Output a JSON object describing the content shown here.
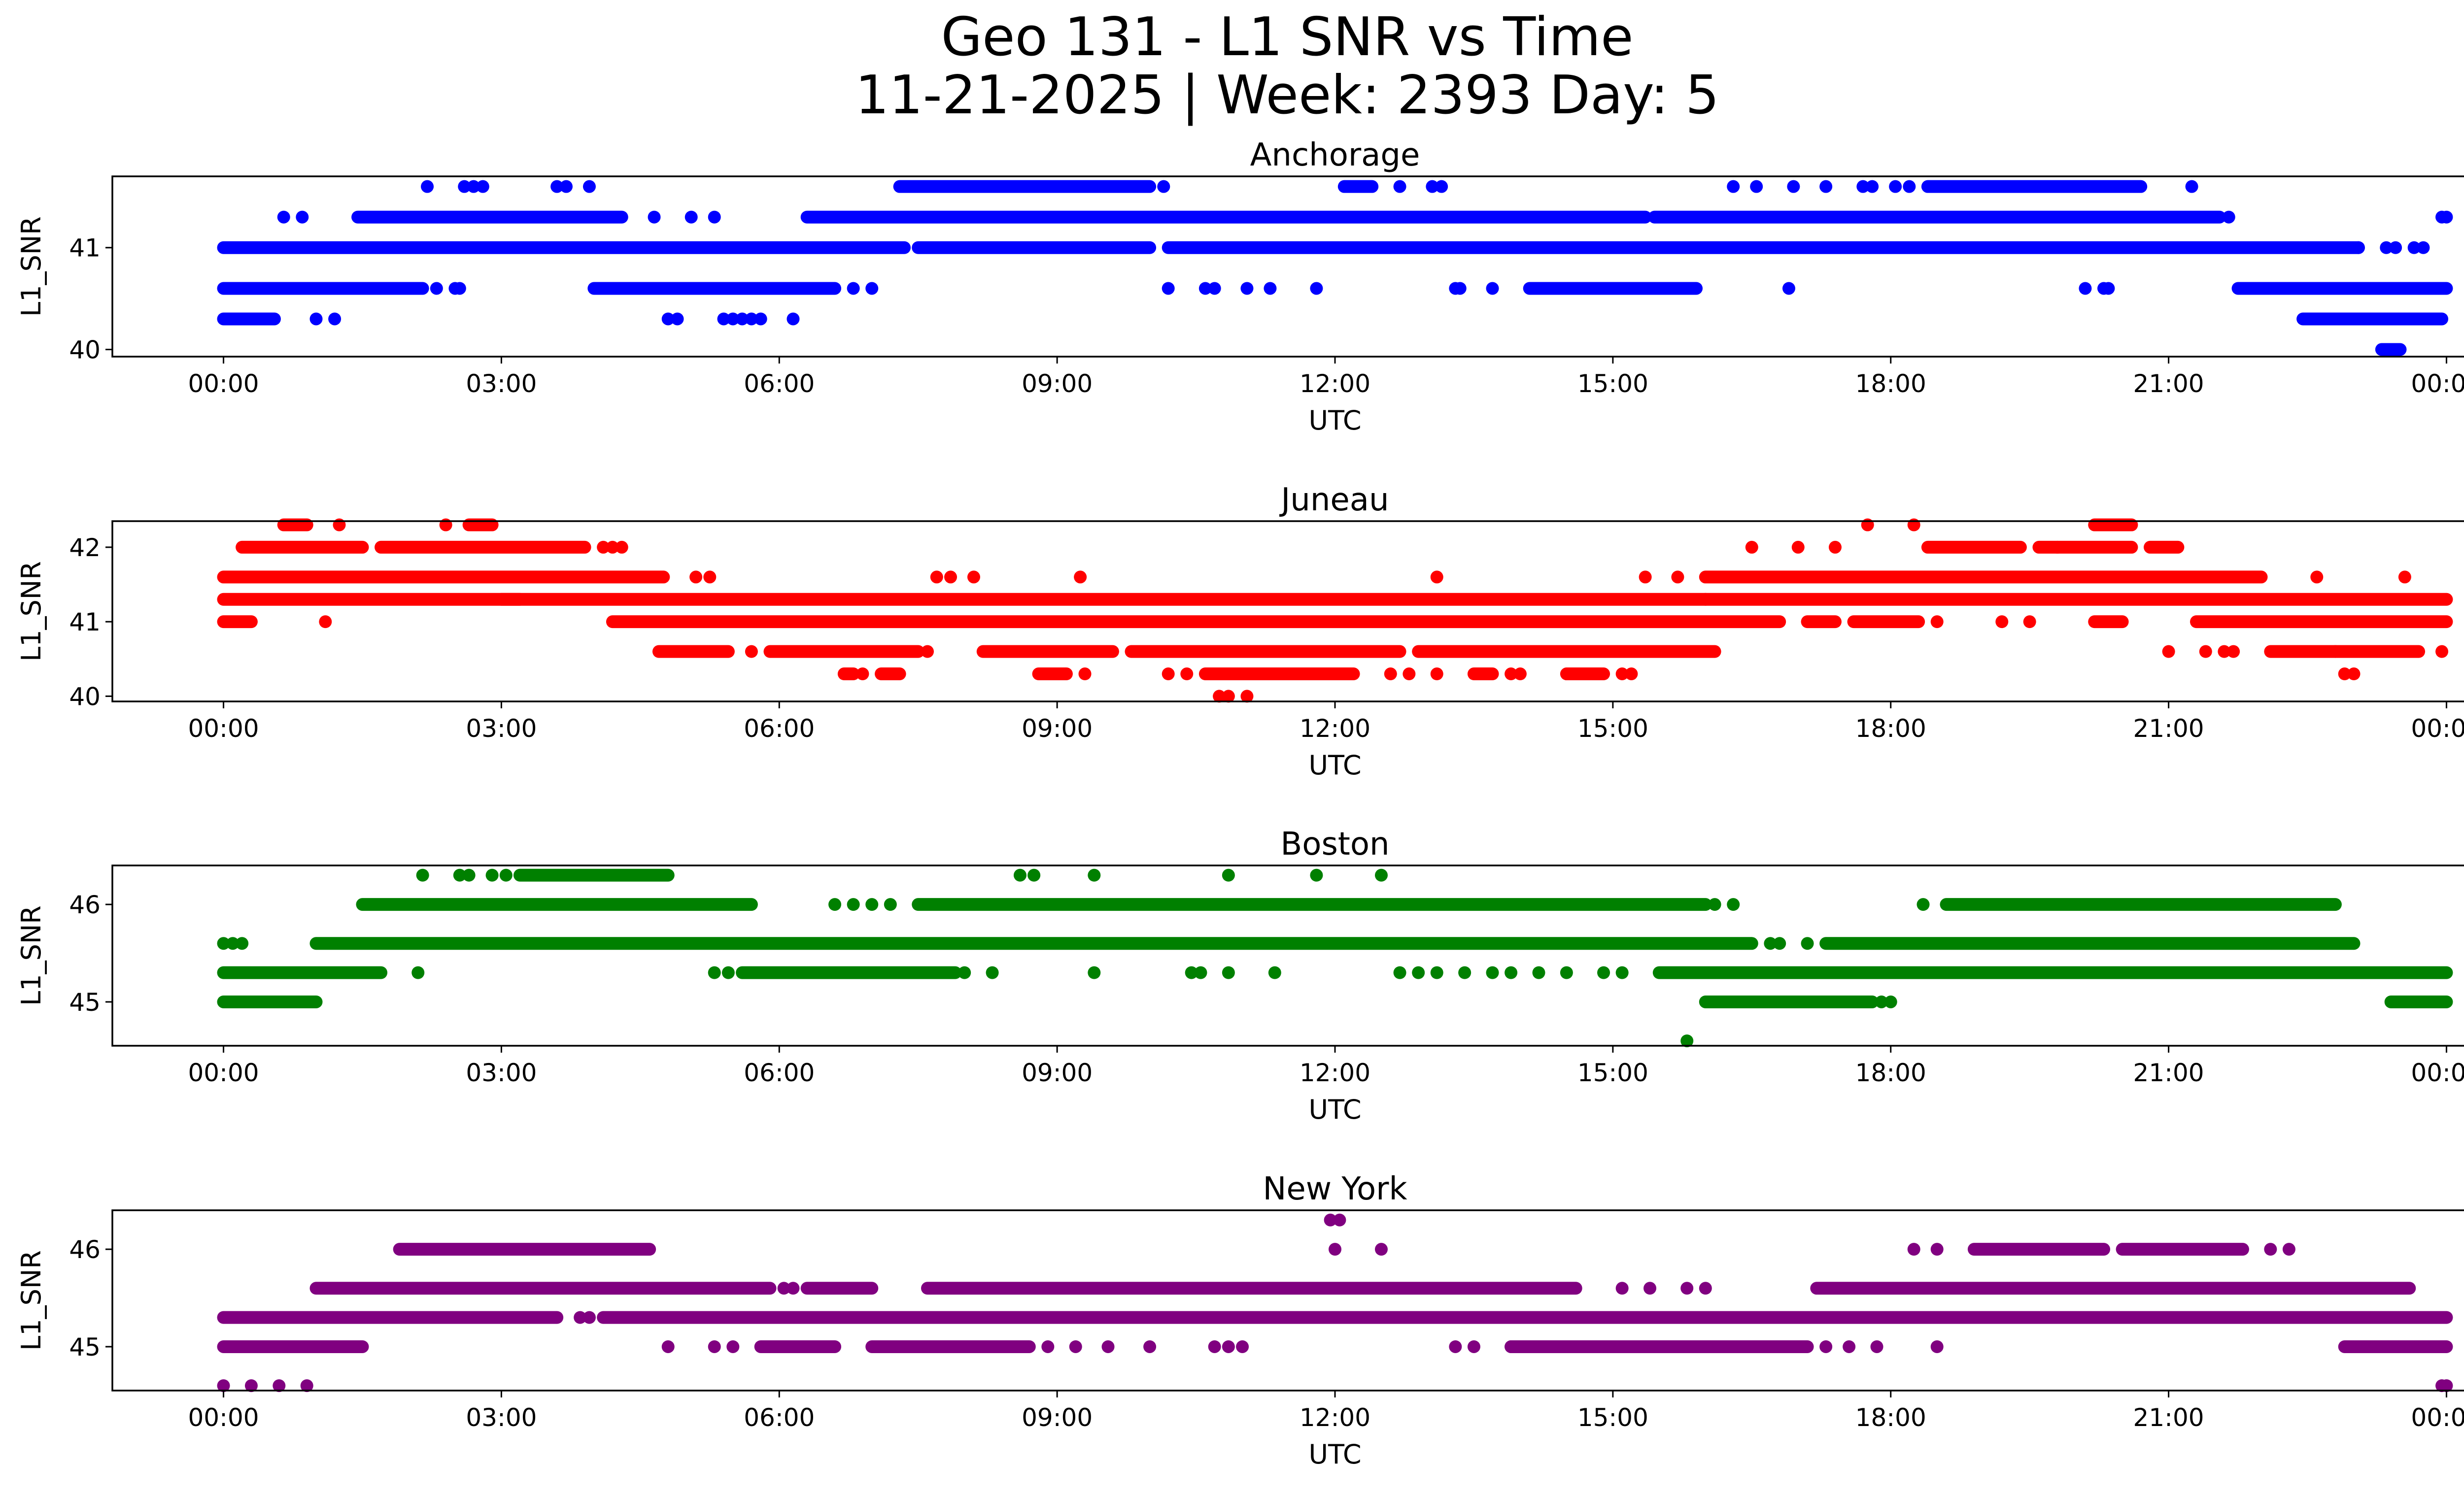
{
  "figure": {
    "title_line1": "Geo 131 - L1 SNR vs Time",
    "title_line2": "11-21-2025 | Week: 2393 Day: 5"
  },
  "chart_data": [
    {
      "type": "scatter",
      "title": "Anchorage",
      "color": "#0000ff",
      "xlabel": "UTC",
      "ylabel": "L1_SNR",
      "xlim": [
        -1.2,
        25.2
      ],
      "ylim": [
        39.93,
        41.7
      ],
      "xticks": [
        0,
        3,
        6,
        9,
        12,
        15,
        18,
        21,
        24
      ],
      "xtick_labels": [
        "00:00",
        "03:00",
        "06:00",
        "09:00",
        "12:00",
        "15:00",
        "18:00",
        "21:00",
        "00:00"
      ],
      "yticks": [
        40,
        41
      ],
      "yvalues": [
        40.0,
        40.3,
        40.6,
        41.0,
        41.3,
        41.6
      ],
      "series": [
        {
          "y": 41.0,
          "segments": [
            [
              0.0,
              7.35
            ],
            [
              7.5,
              10.0
            ],
            [
              10.2,
              23.05
            ]
          ]
        },
        {
          "y": 41.3,
          "segments": [
            [
              1.45,
              4.3
            ],
            [
              6.3,
              15.35
            ],
            [
              15.45,
              21.55
            ]
          ],
          "points": [
            0.65,
            0.85,
            4.65,
            5.05,
            5.3,
            21.65,
            23.95,
            24.0
          ]
        },
        {
          "y": 40.6,
          "segments": [
            [
              0.0,
              2.15
            ],
            [
              4.0,
              6.6
            ],
            [
              14.1,
              15.9
            ],
            [
              21.75,
              24.0
            ]
          ],
          "points": [
            2.3,
            2.5,
            2.55,
            6.8,
            7.0,
            10.2,
            10.6,
            10.7,
            11.05,
            11.3,
            11.8,
            13.3,
            13.35,
            13.7,
            16.9,
            20.1,
            20.3,
            20.35
          ]
        },
        {
          "y": 40.3,
          "segments": [
            [
              0.0,
              0.55
            ],
            [
              22.45,
              23.95
            ]
          ],
          "points": [
            1.0,
            1.2,
            4.8,
            4.9,
            5.4,
            5.5,
            5.6,
            5.7,
            5.8,
            6.15
          ]
        },
        {
          "y": 41.6,
          "segments": [
            [
              7.3,
              10.0
            ],
            [
              12.1,
              12.4
            ],
            [
              18.4,
              20.7
            ]
          ],
          "points": [
            2.2,
            2.6,
            2.7,
            2.8,
            3.6,
            3.7,
            3.95,
            10.15,
            12.7,
            13.05,
            13.15,
            16.3,
            16.55,
            16.95,
            17.3,
            17.7,
            17.8,
            18.05,
            18.2,
            21.25
          ]
        },
        {
          "y": 40.0,
          "segments": [
            [
              23.3,
              23.5
            ]
          ]
        },
        {
          "y": 41.0,
          "points": [
            23.05,
            23.35,
            23.45,
            23.65,
            23.75
          ]
        }
      ]
    },
    {
      "type": "scatter",
      "title": "Juneau",
      "color": "#ff0000",
      "xlabel": "UTC",
      "ylabel": "L1_SNR",
      "xlim": [
        -1.2,
        25.2
      ],
      "ylim": [
        39.93,
        42.35
      ],
      "xticks": [
        0,
        3,
        6,
        9,
        12,
        15,
        18,
        21,
        24
      ],
      "xtick_labels": [
        "00:00",
        "03:00",
        "06:00",
        "09:00",
        "12:00",
        "15:00",
        "18:00",
        "21:00",
        "00:00"
      ],
      "yticks": [
        40,
        41,
        42
      ],
      "yvalues": [
        40.0,
        40.3,
        40.6,
        41.0,
        41.3,
        41.6,
        42.0,
        42.3
      ],
      "series": [
        {
          "y": 41.6,
          "segments": [
            [
              0.0,
              4.75
            ],
            [
              16.0,
              22.0
            ]
          ],
          "points": [
            5.1,
            5.25,
            7.7,
            7.85,
            8.1,
            9.25,
            13.1,
            15.35,
            15.7,
            22.6,
            23.55
          ]
        },
        {
          "y": 41.3,
          "segments": [
            [
              0.0,
              3.2
            ],
            [
              3.0,
              16.0
            ],
            [
              16.0,
              24.0
            ]
          ]
        },
        {
          "y": 41.0,
          "segments": [
            [
              0.0,
              0.3
            ],
            [
              4.2,
              16.8
            ],
            [
              17.1,
              17.4
            ],
            [
              17.6,
              18.3
            ],
            [
              20.2,
              20.5
            ],
            [
              21.3,
              24.0
            ]
          ],
          "points": [
            1.1,
            18.5,
            19.2,
            19.5
          ]
        },
        {
          "y": 42.0,
          "segments": [
            [
              0.2,
              1.5
            ],
            [
              1.7,
              3.9
            ],
            [
              18.4,
              19.4
            ],
            [
              19.6,
              20.6
            ],
            [
              20.8,
              21.1
            ]
          ],
          "points": [
            4.1,
            4.2,
            4.3,
            16.5,
            17.0,
            17.4,
            19.8
          ]
        },
        {
          "y": 42.3,
          "segments": [
            [
              0.65,
              0.9
            ],
            [
              2.65,
              2.9
            ],
            [
              20.2,
              20.6
            ]
          ],
          "points": [
            1.25,
            2.4,
            17.75,
            18.25
          ]
        },
        {
          "y": 40.6,
          "segments": [
            [
              4.7,
              5.45
            ],
            [
              5.9,
              7.5
            ],
            [
              8.2,
              9.6
            ],
            [
              9.8,
              12.7
            ],
            [
              12.9,
              16.1
            ],
            [
              22.1,
              23.7
            ]
          ],
          "points": [
            5.7,
            7.6,
            21.0,
            21.4,
            21.6,
            21.7,
            22.8,
            23.95
          ]
        },
        {
          "y": 40.3,
          "segments": [
            [
              10.6,
              12.2
            ],
            [
              6.7,
              6.8
            ],
            [
              7.1,
              7.3
            ],
            [
              8.8,
              9.1
            ],
            [
              13.5,
              13.7
            ],
            [
              14.5,
              14.9
            ]
          ],
          "points": [
            6.9,
            9.3,
            10.2,
            10.4,
            12.6,
            12.8,
            13.1,
            13.9,
            14.0,
            15.1,
            15.2,
            22.9,
            23.0
          ]
        },
        {
          "y": 40.0,
          "points": [
            10.75,
            10.85,
            11.05
          ]
        }
      ]
    },
    {
      "type": "scatter",
      "title": "Boston",
      "color": "#008000",
      "xlabel": "UTC",
      "ylabel": "L1_SNR",
      "xlim": [
        -1.2,
        25.2
      ],
      "ylim": [
        44.55,
        46.4
      ],
      "xticks": [
        0,
        3,
        6,
        9,
        12,
        15,
        18,
        21,
        24
      ],
      "xtick_labels": [
        "00:00",
        "03:00",
        "06:00",
        "09:00",
        "12:00",
        "15:00",
        "18:00",
        "21:00",
        "00:00"
      ],
      "yticks": [
        45,
        46
      ],
      "yvalues": [
        44.6,
        45.0,
        45.3,
        45.6,
        46.0,
        46.3
      ],
      "series": [
        {
          "y": 45.6,
          "segments": [
            [
              1.0,
              16.5
            ],
            [
              17.3,
              23.0
            ]
          ],
          "points": [
            0.0,
            0.1,
            0.2,
            16.7,
            16.8,
            17.1
          ]
        },
        {
          "y": 45.3,
          "segments": [
            [
              0.0,
              1.7
            ],
            [
              5.6,
              7.9
            ],
            [
              15.5,
              24.0
            ]
          ],
          "points": [
            2.1,
            5.3,
            5.45,
            8.0,
            8.3,
            9.4,
            10.45,
            10.55,
            10.85,
            11.35,
            12.7,
            12.9,
            13.1,
            13.4,
            13.7,
            13.9,
            14.2,
            14.5,
            14.9,
            15.1
          ]
        },
        {
          "y": 45.0,
          "segments": [
            [
              0.0,
              1.0
            ],
            [
              16.0,
              17.8
            ],
            [
              23.4,
              24.0
            ]
          ],
          "points": [
            17.9,
            18.0
          ]
        },
        {
          "y": 46.0,
          "segments": [
            [
              1.5,
              5.7
            ],
            [
              7.5,
              16.0
            ],
            [
              18.6,
              22.8
            ]
          ],
          "points": [
            6.6,
            6.8,
            7.0,
            7.2,
            16.1,
            16.3,
            18.35
          ]
        },
        {
          "y": 46.3,
          "segments": [
            [
              3.2,
              4.8
            ]
          ],
          "points": [
            2.15,
            2.55,
            2.65,
            2.9,
            3.05,
            8.6,
            8.75,
            9.4,
            10.85,
            11.8,
            12.5
          ]
        },
        {
          "y": 44.6,
          "points": [
            15.8
          ]
        }
      ]
    },
    {
      "type": "scatter",
      "title": "New York",
      "color": "#800080",
      "xlabel": "UTC",
      "ylabel": "L1_SNR",
      "xlim": [
        -1.2,
        25.2
      ],
      "ylim": [
        44.55,
        46.4
      ],
      "xticks": [
        0,
        3,
        6,
        9,
        12,
        15,
        18,
        21,
        24
      ],
      "xtick_labels": [
        "00:00",
        "03:00",
        "06:00",
        "09:00",
        "12:00",
        "15:00",
        "18:00",
        "21:00",
        "00:00"
      ],
      "yticks": [
        45,
        46
      ],
      "yvalues": [
        44.6,
        45.0,
        45.3,
        45.6,
        46.0,
        46.3
      ],
      "series": [
        {
          "y": 45.3,
          "segments": [
            [
              0.0,
              3.6
            ],
            [
              4.1,
              24.0
            ]
          ],
          "points": [
            3.85,
            3.95
          ]
        },
        {
          "y": 45.6,
          "segments": [
            [
              1.0,
              5.9
            ],
            [
              6.3,
              7.0
            ],
            [
              7.6,
              14.6
            ],
            [
              17.2,
              23.6
            ]
          ],
          "points": [
            6.05,
            6.15,
            15.1,
            15.4,
            15.8,
            16.0
          ]
        },
        {
          "y": 45.0,
          "segments": [
            [
              0.0,
              1.5
            ],
            [
              5.8,
              6.6
            ],
            [
              7.0,
              8.7
            ],
            [
              13.9,
              17.1
            ],
            [
              22.9,
              24.0
            ]
          ],
          "points": [
            4.8,
            5.3,
            5.5,
            8.9,
            9.2,
            9.55,
            10.0,
            10.7,
            10.85,
            11.0,
            13.3,
            13.5,
            13.9,
            17.3,
            17.55,
            17.85,
            18.5
          ]
        },
        {
          "y": 46.0,
          "segments": [
            [
              1.9,
              4.6
            ],
            [
              18.9,
              20.3
            ],
            [
              20.5,
              21.8
            ]
          ],
          "points": [
            12.0,
            12.5,
            18.25,
            18.5,
            22.1,
            22.3
          ]
        },
        {
          "y": 44.6,
          "points": [
            0.0,
            0.3,
            0.6,
            0.9,
            23.95,
            24.0
          ]
        },
        {
          "y": 46.3,
          "points": [
            11.95,
            12.05
          ]
        }
      ]
    }
  ]
}
